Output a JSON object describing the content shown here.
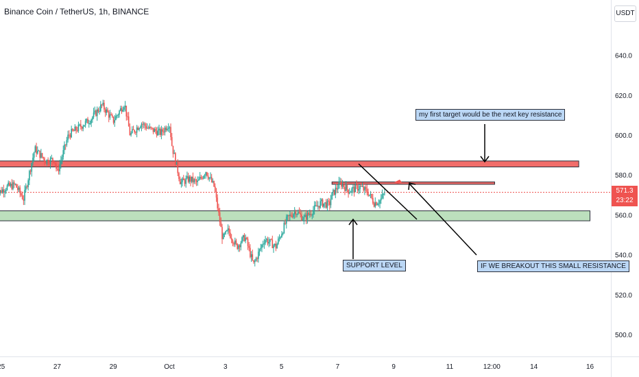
{
  "title": "Binance Coin / TetherUS, 1h, BINANCE",
  "currency_button": "USDT",
  "last_price": {
    "value": "571.3",
    "countdown": "23:22"
  },
  "notes": {
    "target": "my first target would be the next key resistance",
    "support": "SUPPORT LEVEL",
    "breakout": "IF WE BREAKOUT THIS SMALL RESISTANCE"
  },
  "colors": {
    "up": "#26a69a",
    "down": "#ef5350",
    "resistance_zone": "#ef5350",
    "support_zone": "#a5d6a7",
    "note_bg": "#bbd7f5",
    "last_price_line": "#ef5350"
  },
  "chart_data": {
    "type": "candlestick",
    "symbol": "Binance Coin / TetherUS",
    "interval": "1h",
    "exchange": "BINANCE",
    "y_axis": {
      "ticks": [
        500,
        520,
        540,
        560,
        580,
        600,
        620,
        640
      ],
      "tick_labels": [
        "500.0",
        "520.0",
        "540.0",
        "560.0",
        "580.0",
        "600.0",
        "620.0",
        "640.0"
      ]
    },
    "x_axis": {
      "tick_labels": [
        "25",
        "27",
        "29",
        "Oct",
        "3",
        "5",
        "7",
        "9",
        "11",
        "12:00",
        "14",
        "16"
      ],
      "tick_days": [
        -5,
        -3,
        -1,
        1,
        3,
        5,
        7,
        9,
        11,
        12.5,
        14,
        16
      ]
    },
    "price_path": [
      [
        -5.2,
        570
      ],
      [
        -4.8,
        574
      ],
      [
        -4.5,
        575
      ],
      [
        -4.2,
        568
      ],
      [
        -3.8,
        593
      ],
      [
        -3.4,
        587
      ],
      [
        -3.1,
        588
      ],
      [
        -3.0,
        581
      ],
      [
        -2.6,
        600
      ],
      [
        -2.2,
        604
      ],
      [
        -1.8,
        608
      ],
      [
        -1.4,
        615
      ],
      [
        -1.0,
        607
      ],
      [
        -0.6,
        616
      ],
      [
        -0.4,
        600
      ],
      [
        0.0,
        606
      ],
      [
        0.3,
        603
      ],
      [
        0.7,
        601
      ],
      [
        1.0,
        606
      ],
      [
        1.1,
        594
      ],
      [
        1.4,
        576
      ],
      [
        1.7,
        578
      ],
      [
        2.0,
        576
      ],
      [
        2.3,
        582
      ],
      [
        2.6,
        574
      ],
      [
        2.9,
        548
      ],
      [
        3.1,
        552
      ],
      [
        3.4,
        544
      ],
      [
        3.7,
        549
      ],
      [
        4.0,
        535
      ],
      [
        4.4,
        548
      ],
      [
        4.8,
        544
      ],
      [
        5.2,
        558
      ],
      [
        5.5,
        562
      ],
      [
        5.8,
        558
      ],
      [
        6.1,
        562
      ],
      [
        6.4,
        566
      ],
      [
        6.7,
        565
      ],
      [
        6.8,
        570
      ],
      [
        7.1,
        576
      ],
      [
        7.4,
        572
      ],
      [
        7.8,
        574
      ],
      [
        8.1,
        571
      ],
      [
        8.3,
        566
      ],
      [
        8.5,
        567
      ],
      [
        8.7,
        571.3
      ]
    ],
    "zones": [
      {
        "name": "resistance",
        "from_price": 584,
        "to_price": 587,
        "from_day": -5.3,
        "to_day": 15.6
      },
      {
        "name": "small-resistance",
        "from_price": 575.3,
        "to_price": 576.5,
        "from_day": 6.8,
        "to_day": 12.6
      },
      {
        "name": "support",
        "from_price": 557,
        "to_price": 562,
        "from_day": -5.3,
        "to_day": 16.0
      }
    ],
    "last_price": 571.3,
    "legend": "none",
    "grid": false
  }
}
